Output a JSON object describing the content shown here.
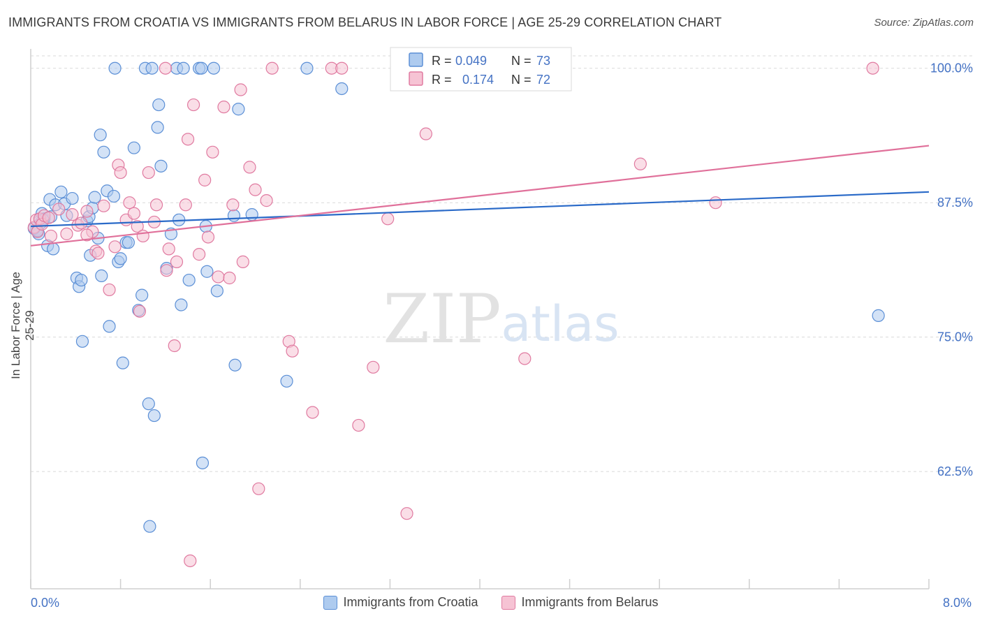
{
  "title": "IMMIGRANTS FROM CROATIA VS IMMIGRANTS FROM BELARUS IN LABOR FORCE | AGE 25-29 CORRELATION CHART",
  "source": "Source: ZipAtlas.com",
  "watermark": {
    "zip": "ZIP",
    "atlas": "atlas"
  },
  "colors": {
    "croatia": "#5b8fd6",
    "croatia_fill": "#aecbef",
    "belarus": "#e07aa0",
    "belarus_fill": "#f6c3d4",
    "croatia_line": "#2a6ac8",
    "belarus_line": "#e0709a",
    "tick_text": "#4472c4",
    "grid": "#d9d9d9"
  },
  "legend": {
    "r_label": "R =",
    "n_label": "N =",
    "croatia": {
      "r": "0.049",
      "n": "73"
    },
    "belarus": {
      "r": "0.174",
      "n": "72"
    }
  },
  "bottom_legend": {
    "croatia": "Immigrants from Croatia",
    "belarus": "Immigrants from Belarus"
  },
  "chart_data": {
    "type": "scatter",
    "xlabel": "",
    "ylabel": "In Labor Force | Age 25-29",
    "xlim": [
      0,
      8
    ],
    "ylim": [
      51.6,
      101.8
    ],
    "x_tick_labels": [
      "0.0%",
      "8.0%"
    ],
    "y_ticks": [
      62.5,
      75.0,
      87.5,
      100.0
    ],
    "y_tick_labels": [
      "62.5%",
      "75.0%",
      "87.5%",
      "100.0%"
    ],
    "grid": true,
    "legend_position": "top-center",
    "series": [
      {
        "name": "Immigrants from Croatia",
        "trend": {
          "x0": 0,
          "y0": 85.3,
          "x1": 8,
          "y1": 88.5
        },
        "points": [
          [
            0.05,
            85.0
          ],
          [
            0.07,
            84.6
          ],
          [
            0.08,
            85.8
          ],
          [
            0.1,
            86.5
          ],
          [
            0.12,
            86.0
          ],
          [
            0.15,
            83.5
          ],
          [
            0.17,
            87.8
          ],
          [
            0.18,
            86.2
          ],
          [
            0.2,
            83.2
          ],
          [
            0.22,
            87.3
          ],
          [
            0.27,
            88.5
          ],
          [
            0.3,
            87.4
          ],
          [
            0.32,
            86.3
          ],
          [
            0.37,
            87.9
          ],
          [
            0.41,
            80.5
          ],
          [
            0.43,
            79.7
          ],
          [
            0.45,
            80.3
          ],
          [
            0.46,
            74.6
          ],
          [
            0.5,
            85.8
          ],
          [
            0.52,
            86.2
          ],
          [
            0.53,
            82.6
          ],
          [
            0.55,
            87.0
          ],
          [
            0.57,
            88.0
          ],
          [
            0.6,
            84.2
          ],
          [
            0.62,
            93.8
          ],
          [
            0.63,
            80.7
          ],
          [
            0.65,
            92.2
          ],
          [
            0.68,
            88.6
          ],
          [
            0.7,
            76.0
          ],
          [
            0.74,
            88.1
          ],
          [
            0.75,
            100.0
          ],
          [
            0.78,
            82.0
          ],
          [
            0.8,
            82.3
          ],
          [
            0.82,
            72.6
          ],
          [
            0.85,
            83.8
          ],
          [
            0.87,
            83.8
          ],
          [
            0.92,
            92.6
          ],
          [
            0.96,
            77.5
          ],
          [
            0.99,
            78.9
          ],
          [
            1.02,
            100.0
          ],
          [
            1.05,
            68.8
          ],
          [
            1.06,
            57.4
          ],
          [
            1.08,
            100.0
          ],
          [
            1.1,
            67.7
          ],
          [
            1.13,
            94.5
          ],
          [
            1.14,
            96.6
          ],
          [
            1.16,
            90.9
          ],
          [
            1.21,
            81.4
          ],
          [
            1.25,
            84.6
          ],
          [
            1.3,
            100.0
          ],
          [
            1.32,
            85.9
          ],
          [
            1.34,
            78.0
          ],
          [
            1.36,
            100.0
          ],
          [
            1.41,
            80.3
          ],
          [
            1.5,
            100.0
          ],
          [
            1.52,
            100.0
          ],
          [
            1.53,
            63.3
          ],
          [
            1.56,
            85.3
          ],
          [
            1.57,
            81.1
          ],
          [
            1.63,
            100.0
          ],
          [
            1.66,
            79.3
          ],
          [
            1.81,
            86.3
          ],
          [
            1.82,
            72.4
          ],
          [
            1.85,
            96.2
          ],
          [
            1.97,
            86.4
          ],
          [
            2.28,
            70.9
          ],
          [
            2.46,
            100.0
          ],
          [
            2.77,
            98.1
          ],
          [
            7.55,
            77.0
          ],
          [
            0.03,
            85.1
          ],
          [
            0.06,
            84.9
          ],
          [
            0.09,
            85.6
          ],
          [
            0.11,
            85.9
          ]
        ]
      },
      {
        "name": "Immigrants from Belarus",
        "trend": {
          "x0": 0,
          "y0": 83.5,
          "x1": 8,
          "y1": 92.8
        },
        "points": [
          [
            0.03,
            85.2
          ],
          [
            0.05,
            85.9
          ],
          [
            0.06,
            84.8
          ],
          [
            0.08,
            86.0
          ],
          [
            0.1,
            85.5
          ],
          [
            0.12,
            86.3
          ],
          [
            0.16,
            86.1
          ],
          [
            0.18,
            84.4
          ],
          [
            0.25,
            86.9
          ],
          [
            0.32,
            84.6
          ],
          [
            0.37,
            86.4
          ],
          [
            0.42,
            85.4
          ],
          [
            0.45,
            85.6
          ],
          [
            0.5,
            86.7
          ],
          [
            0.55,
            84.8
          ],
          [
            0.58,
            83.0
          ],
          [
            0.6,
            82.8
          ],
          [
            0.65,
            87.2
          ],
          [
            0.7,
            79.4
          ],
          [
            0.75,
            83.4
          ],
          [
            0.78,
            91.0
          ],
          [
            0.8,
            90.3
          ],
          [
            0.85,
            85.9
          ],
          [
            0.88,
            87.5
          ],
          [
            0.92,
            86.5
          ],
          [
            0.95,
            85.3
          ],
          [
            0.97,
            77.4
          ],
          [
            1.0,
            84.4
          ],
          [
            1.05,
            90.3
          ],
          [
            1.1,
            85.7
          ],
          [
            1.12,
            87.3
          ],
          [
            1.2,
            100.0
          ],
          [
            1.21,
            81.2
          ],
          [
            1.23,
            83.2
          ],
          [
            1.28,
            74.2
          ],
          [
            1.3,
            82.0
          ],
          [
            1.38,
            87.3
          ],
          [
            1.4,
            93.4
          ],
          [
            1.45,
            96.6
          ],
          [
            1.5,
            82.7
          ],
          [
            1.55,
            89.6
          ],
          [
            1.58,
            84.3
          ],
          [
            1.62,
            92.2
          ],
          [
            1.67,
            80.6
          ],
          [
            1.72,
            96.4
          ],
          [
            1.77,
            80.5
          ],
          [
            1.8,
            87.3
          ],
          [
            1.87,
            98.0
          ],
          [
            1.89,
            82.0
          ],
          [
            1.95,
            90.8
          ],
          [
            2.0,
            88.7
          ],
          [
            2.03,
            60.9
          ],
          [
            2.1,
            87.7
          ],
          [
            2.15,
            100.0
          ],
          [
            2.3,
            74.6
          ],
          [
            2.33,
            73.7
          ],
          [
            2.51,
            68.0
          ],
          [
            2.68,
            100.0
          ],
          [
            2.77,
            100.0
          ],
          [
            2.92,
            66.8
          ],
          [
            3.05,
            72.2
          ],
          [
            3.18,
            86.0
          ],
          [
            3.35,
            58.6
          ],
          [
            3.52,
            93.9
          ],
          [
            3.9,
            100.0
          ],
          [
            4.4,
            73.0
          ],
          [
            4.43,
            100.0
          ],
          [
            5.43,
            91.1
          ],
          [
            6.1,
            87.5
          ],
          [
            7.5,
            100.0
          ],
          [
            1.42,
            54.2
          ],
          [
            0.5,
            84.5
          ]
        ]
      }
    ]
  }
}
